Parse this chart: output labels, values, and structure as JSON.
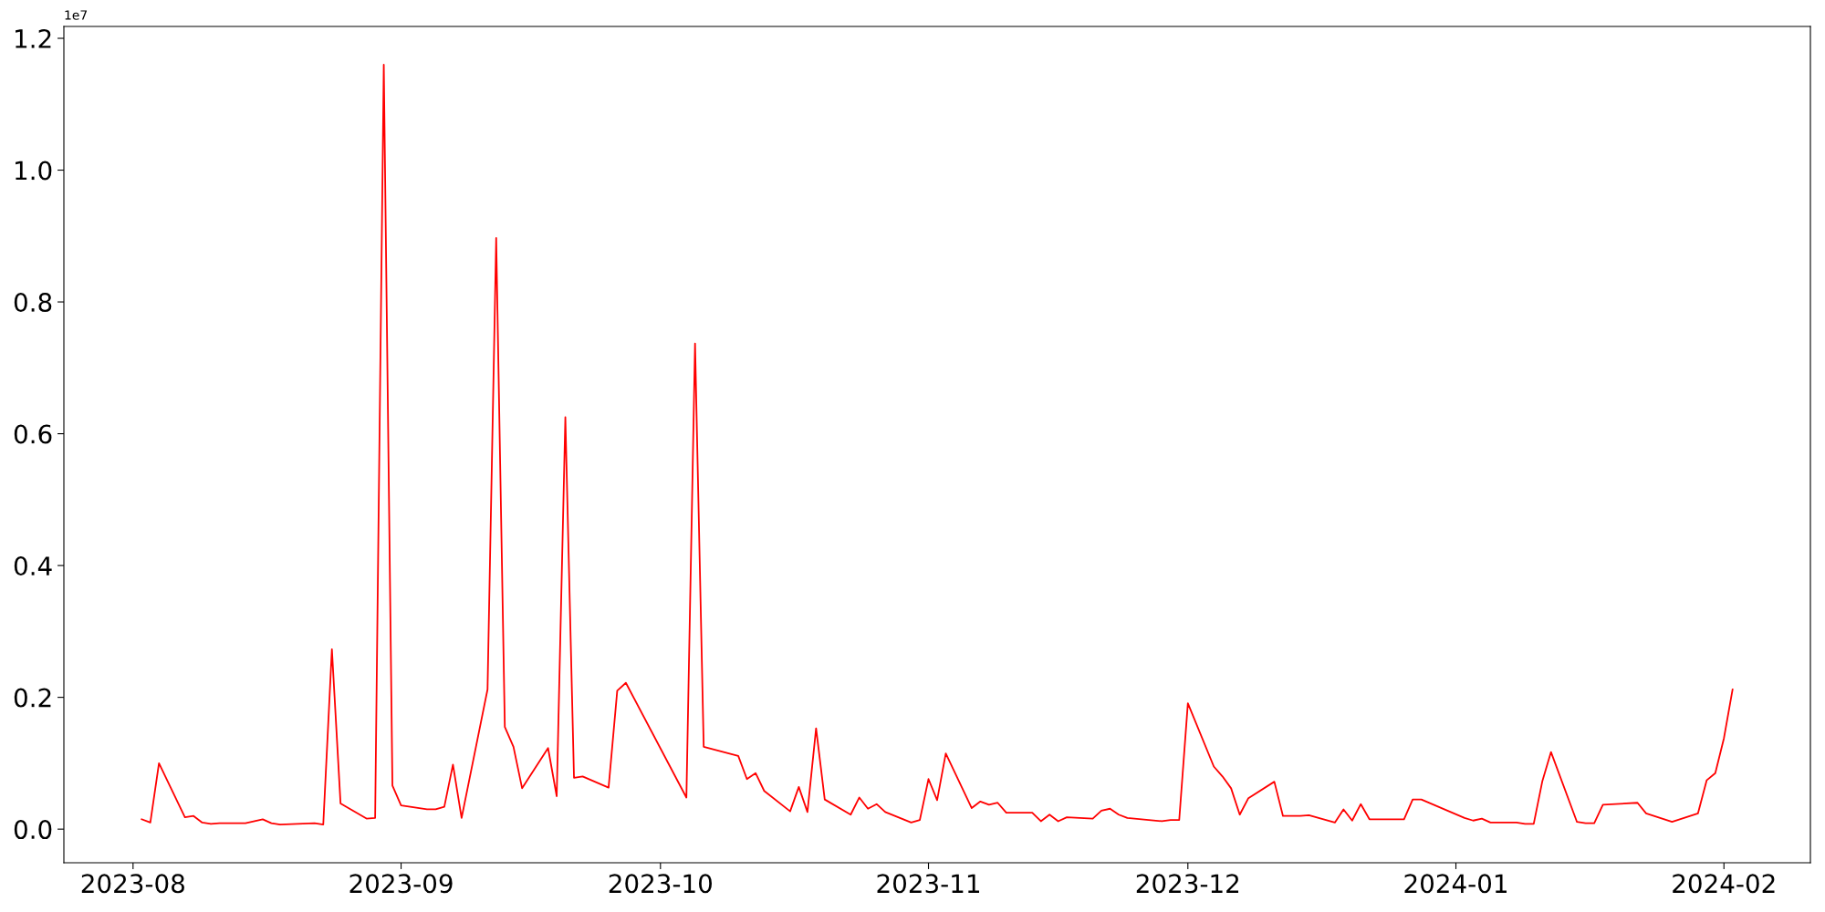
{
  "chart_data": {
    "type": "line",
    "x": [
      "2023-08-02",
      "2023-08-03",
      "2023-08-04",
      "2023-08-07",
      "2023-08-08",
      "2023-08-09",
      "2023-08-10",
      "2023-08-11",
      "2023-08-14",
      "2023-08-16",
      "2023-08-17",
      "2023-08-18",
      "2023-08-22",
      "2023-08-23",
      "2023-08-24",
      "2023-08-25",
      "2023-08-28",
      "2023-08-29",
      "2023-08-30",
      "2023-08-31",
      "2023-09-01",
      "2023-09-04",
      "2023-09-05",
      "2023-09-06",
      "2023-09-07",
      "2023-09-08",
      "2023-09-11",
      "2023-09-12",
      "2023-09-13",
      "2023-09-14",
      "2023-09-15",
      "2023-09-18",
      "2023-09-19",
      "2023-09-20",
      "2023-09-21",
      "2023-09-22",
      "2023-09-25",
      "2023-09-26",
      "2023-09-27",
      "2023-10-04",
      "2023-10-05",
      "2023-10-06",
      "2023-10-10",
      "2023-10-11",
      "2023-10-12",
      "2023-10-13",
      "2023-10-16",
      "2023-10-17",
      "2023-10-18",
      "2023-10-19",
      "2023-10-20",
      "2023-10-23",
      "2023-10-24",
      "2023-10-25",
      "2023-10-26",
      "2023-10-27",
      "2023-10-30",
      "2023-10-31",
      "2023-11-01",
      "2023-11-02",
      "2023-11-03",
      "2023-11-06",
      "2023-11-07",
      "2023-11-08",
      "2023-11-09",
      "2023-11-10",
      "2023-11-13",
      "2023-11-14",
      "2023-11-15",
      "2023-11-16",
      "2023-11-17",
      "2023-11-20",
      "2023-11-21",
      "2023-11-22",
      "2023-11-23",
      "2023-11-24",
      "2023-11-28",
      "2023-11-29",
      "2023-11-30",
      "2023-12-01",
      "2023-12-04",
      "2023-12-05",
      "2023-12-06",
      "2023-12-07",
      "2023-12-08",
      "2023-12-11",
      "2023-12-12",
      "2023-12-14",
      "2023-12-15",
      "2023-12-18",
      "2023-12-19",
      "2023-12-20",
      "2023-12-21",
      "2023-12-22",
      "2023-12-26",
      "2023-12-27",
      "2023-12-28",
      "2024-01-02",
      "2024-01-03",
      "2024-01-04",
      "2024-01-05",
      "2024-01-08",
      "2024-01-09",
      "2024-01-10",
      "2024-01-11",
      "2024-01-12",
      "2024-01-15",
      "2024-01-16",
      "2024-01-17",
      "2024-01-18",
      "2024-01-22",
      "2024-01-23",
      "2024-01-26",
      "2024-01-29",
      "2024-01-30",
      "2024-01-31",
      "2024-02-01",
      "2024-02-02"
    ],
    "series": [
      {
        "color": "#ff0000",
        "values": [
          0.015,
          0.01,
          0.1,
          0.018,
          0.02,
          0.01,
          0.008,
          0.009,
          0.009,
          0.015,
          0.009,
          0.007,
          0.009,
          0.007,
          0.273,
          0.039,
          0.016,
          0.017,
          1.16,
          0.066,
          0.036,
          0.03,
          0.03,
          0.034,
          0.098,
          0.017,
          0.212,
          0.897,
          0.155,
          0.125,
          0.062,
          0.123,
          0.05,
          0.625,
          0.078,
          0.08,
          0.063,
          0.21,
          0.222,
          0.048,
          0.737,
          0.125,
          0.111,
          0.076,
          0.085,
          0.058,
          0.027,
          0.064,
          0.026,
          0.153,
          0.045,
          0.022,
          0.048,
          0.031,
          0.038,
          0.026,
          0.01,
          0.014,
          0.076,
          0.044,
          0.115,
          0.032,
          0.042,
          0.037,
          0.04,
          0.025,
          0.025,
          0.012,
          0.022,
          0.012,
          0.018,
          0.016,
          0.028,
          0.031,
          0.022,
          0.017,
          0.012,
          0.014,
          0.014,
          0.191,
          0.095,
          0.08,
          0.062,
          0.022,
          0.047,
          0.072,
          0.02,
          0.02,
          0.021,
          0.01,
          0.03,
          0.013,
          0.038,
          0.015,
          0.015,
          0.045,
          0.045,
          0.017,
          0.013,
          0.016,
          0.01,
          0.01,
          0.008,
          0.008,
          0.073,
          0.117,
          0.011,
          0.009,
          0.009,
          0.037,
          0.04,
          0.024,
          0.011,
          0.024,
          0.074,
          0.085,
          0.138,
          0.212
        ]
      }
    ],
    "xlim": [
      "2023-07-24",
      "2024-02-11"
    ],
    "xticks": [
      "2023-08",
      "2023-09",
      "2023-10",
      "2023-11",
      "2023-12",
      "2024-01",
      "2024-02"
    ],
    "ylim": [
      -0.051,
      1.218
    ],
    "yticks": [
      {
        "value": 0,
        "label": "0.0"
      },
      0.2,
      0.4,
      0.6,
      0.8,
      {
        "value": 1,
        "label": "1.0"
      },
      1.2
    ],
    "annotations": [
      "1e7"
    ],
    "grid": false,
    "legend": false,
    "line_style": "solid"
  }
}
